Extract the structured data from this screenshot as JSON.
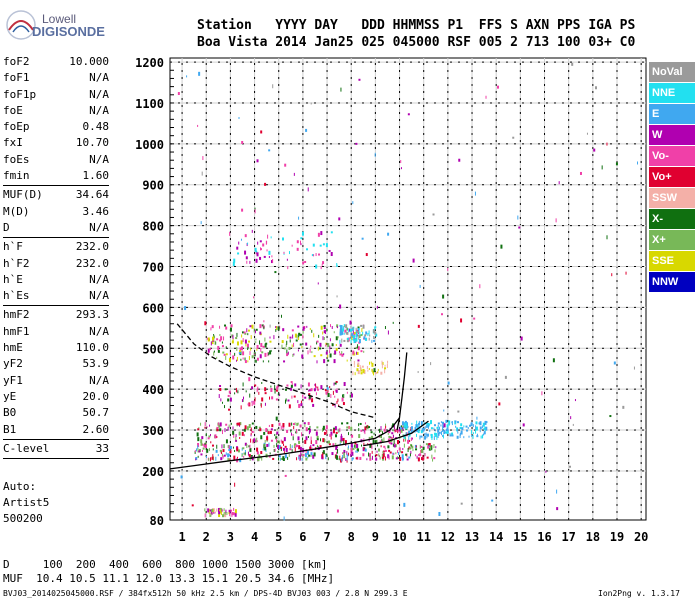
{
  "logo": {
    "line1": "Lowell",
    "line2": "DIGISONDE"
  },
  "header": {
    "line1": "Station   YYYY DAY   DDD HHMMSS P1  FFS S AXN PPS IGA PS",
    "line2": "Boa Vista 2014 Jan25 025 045000 RSF 005 2 713 100 03+ C0"
  },
  "params": [
    [
      {
        "k": "foF2",
        "v": "10.000"
      },
      {
        "k": "foF1",
        "v": "N/A"
      },
      {
        "k": "foF1p",
        "v": "N/A"
      },
      {
        "k": "foE",
        "v": "N/A"
      },
      {
        "k": "foEp",
        "v": "0.48"
      },
      {
        "k": "fxI",
        "v": "10.70"
      },
      {
        "k": "foEs",
        "v": "N/A"
      },
      {
        "k": "fmin",
        "v": "1.60"
      }
    ],
    [
      {
        "k": "MUF(D)",
        "v": "34.64"
      },
      {
        "k": "M(D)",
        "v": "3.46"
      },
      {
        "k": "D",
        "v": "N/A"
      }
    ],
    [
      {
        "k": "h`F",
        "v": "232.0"
      },
      {
        "k": "h`F2",
        "v": "232.0"
      },
      {
        "k": "h`E",
        "v": "N/A"
      },
      {
        "k": "h`Es",
        "v": "N/A"
      }
    ],
    [
      {
        "k": "hmF2",
        "v": "293.3"
      },
      {
        "k": "hmF1",
        "v": "N/A"
      },
      {
        "k": "hmE",
        "v": "110.0"
      },
      {
        "k": "yF2",
        "v": "53.9"
      },
      {
        "k": "yF1",
        "v": "N/A"
      },
      {
        "k": "yE",
        "v": "20.0"
      },
      {
        "k": "B0",
        "v": "50.7"
      },
      {
        "k": "B1",
        "v": "2.60"
      }
    ],
    [
      {
        "k": "C-level",
        "v": "33"
      }
    ]
  ],
  "auto": {
    "line1": "Auto:",
    "line2": "Artist5",
    "line3": "500200"
  },
  "bottom": {
    "d_line": "D     100  200  400  600  800 1000 1500 3000 [km]",
    "muf_line": "MUF  10.4 10.5 11.1 12.0 13.3 15.1 20.5 34.6 [MHz]",
    "footer": "BVJ03_2014025045000.RSF / 384fx512h 50 kHz 2.5 km / DPS-4D BVJ03 003 / 2.8 N 299.3 E",
    "version": "Ion2Png v. 1.3.17"
  },
  "legend": [
    {
      "label": "NoVal",
      "color": "#9a9a9a"
    },
    {
      "label": "NNE",
      "color": "#22e0f0"
    },
    {
      "label": "E",
      "color": "#40a8f0"
    },
    {
      "label": "W",
      "color": "#b000b0"
    },
    {
      "label": "Vo-",
      "color": "#f040a8"
    },
    {
      "label": "Vo+",
      "color": "#e00030"
    },
    {
      "label": "SSW",
      "color": "#f4b0a8"
    },
    {
      "label": "X-",
      "color": "#107010"
    },
    {
      "label": "X+",
      "color": "#78b858"
    },
    {
      "label": "SSE",
      "color": "#d8d800"
    },
    {
      "label": "NNW",
      "color": "#0000c0"
    }
  ],
  "chart_data": {
    "type": "scatter",
    "title": "",
    "xlabel": "",
    "ylabel": "",
    "xlim": [
      0.5,
      20.2
    ],
    "ylim": [
      80,
      1210
    ],
    "xticks": [
      1,
      2,
      3,
      4,
      5,
      6,
      7,
      8,
      9,
      10,
      11,
      12,
      13,
      14,
      15,
      16,
      17,
      18,
      19,
      20
    ],
    "yticks": [
      80,
      200,
      300,
      400,
      500,
      600,
      700,
      800,
      900,
      1000,
      1100,
      1200
    ],
    "grid": true,
    "traces": [
      {
        "name": "o-trace lower",
        "color": "#000000",
        "x": [
          0.5,
          1.5,
          3,
          5,
          7,
          8,
          9,
          9.6,
          10.0
        ],
        "y": [
          205,
          213,
          225,
          240,
          258,
          268,
          280,
          300,
          330
        ]
      },
      {
        "name": "o-trace rising",
        "color": "#000000",
        "x": [
          9.9,
          10.0,
          10.1,
          10.2,
          10.3
        ],
        "y": [
          300,
          330,
          380,
          430,
          490
        ]
      },
      {
        "name": "x-trace",
        "color": "#000000",
        "x": [
          8.5,
          9.5,
          10.5,
          11.2
        ],
        "y": [
          262,
          272,
          292,
          322
        ]
      },
      {
        "name": "profile",
        "color": "#000000",
        "dashed": true,
        "x": [
          0.8,
          1.5,
          2.2,
          3.0,
          4.0,
          5.5,
          7.0,
          8.0,
          9.0
        ],
        "y": [
          560,
          510,
          480,
          455,
          430,
          400,
          370,
          345,
          330
        ]
      }
    ],
    "clusters": [
      {
        "x0": 1.8,
        "x1": 3.2,
        "y0": 94,
        "y1": 110,
        "n": 50,
        "colors": [
          "#f040a8",
          "#b000b0",
          "#d8d800",
          "#78b858",
          "#f4b0a8"
        ]
      },
      {
        "x0": 1.5,
        "x1": 11.5,
        "y0": 230,
        "y1": 270,
        "n": 360,
        "colors": [
          "#f040a8",
          "#b000b0",
          "#107010",
          "#e00030",
          "#78b858",
          "#40a8f0"
        ]
      },
      {
        "x0": 1.6,
        "x1": 10.5,
        "y0": 272,
        "y1": 320,
        "n": 260,
        "colors": [
          "#f040a8",
          "#b000b0",
          "#107010",
          "#e00030",
          "#78b858"
        ]
      },
      {
        "x0": 10,
        "x1": 13.6,
        "y0": 285,
        "y1": 325,
        "n": 160,
        "colors": [
          "#40a8f0",
          "#22e0f0",
          "#40a8f0"
        ]
      },
      {
        "x0": 2.5,
        "x1": 8,
        "y0": 360,
        "y1": 420,
        "n": 120,
        "colors": [
          "#f040a8",
          "#b000b0",
          "#107010",
          "#e00030"
        ]
      },
      {
        "x0": 2,
        "x1": 8.5,
        "y0": 470,
        "y1": 560,
        "n": 260,
        "colors": [
          "#f040a8",
          "#b000b0",
          "#107010",
          "#78b858",
          "#d8d800"
        ]
      },
      {
        "x0": 7.5,
        "x1": 9,
        "y0": 520,
        "y1": 560,
        "n": 70,
        "colors": [
          "#40a8f0",
          "#22e0f0",
          "#9a9a9a"
        ]
      },
      {
        "x0": 8,
        "x1": 9.5,
        "y0": 440,
        "y1": 470,
        "n": 40,
        "colors": [
          "#d8d800",
          "#f4b0a8"
        ]
      },
      {
        "x0": 3,
        "x1": 7.5,
        "y0": 700,
        "y1": 790,
        "n": 70,
        "colors": [
          "#f040a8",
          "#b000b0",
          "#22e0f0"
        ]
      },
      {
        "x0": 0.6,
        "x1": 20,
        "y0": 85,
        "y1": 1200,
        "n": 130,
        "colors": [
          "#e00030",
          "#107010",
          "#40a8f0",
          "#b000b0",
          "#f040a8",
          "#9a9a9a"
        ]
      }
    ]
  }
}
